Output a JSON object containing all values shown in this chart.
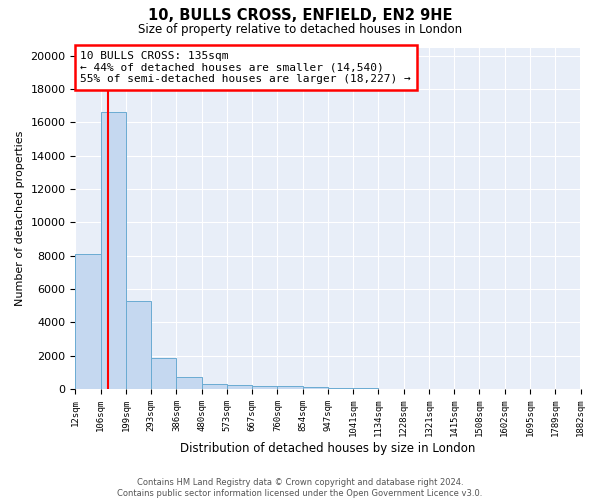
{
  "title": "10, BULLS CROSS, ENFIELD, EN2 9HE",
  "subtitle": "Size of property relative to detached houses in London",
  "xlabel": "Distribution of detached houses by size in London",
  "ylabel": "Number of detached properties",
  "bar_color": "#c5d8f0",
  "bar_edge_color": "#6aabd2",
  "background_color": "#e8eef8",
  "grid_color": "#ffffff",
  "bin_labels": [
    "12sqm",
    "106sqm",
    "199sqm",
    "293sqm",
    "386sqm",
    "480sqm",
    "573sqm",
    "667sqm",
    "760sqm",
    "854sqm",
    "947sqm",
    "1041sqm",
    "1134sqm",
    "1228sqm",
    "1321sqm",
    "1415sqm",
    "1508sqm",
    "1602sqm",
    "1695sqm",
    "1789sqm",
    "1882sqm"
  ],
  "bar_values": [
    8100,
    16600,
    5300,
    1850,
    700,
    320,
    230,
    210,
    180,
    130,
    50,
    40,
    30,
    20,
    15,
    10,
    8,
    5,
    3,
    2
  ],
  "ylim": [
    0,
    20500
  ],
  "yticks": [
    0,
    2000,
    4000,
    6000,
    8000,
    10000,
    12000,
    14000,
    16000,
    18000,
    20000
  ],
  "red_line_x": 1.31,
  "annotation_text": "10 BULLS CROSS: 135sqm\n← 44% of detached houses are smaller (14,540)\n55% of semi-detached houses are larger (18,227) →",
  "annotation_box_color": "white",
  "annotation_box_edge_color": "red",
  "footer_line1": "Contains HM Land Registry data © Crown copyright and database right 2024.",
  "footer_line2": "Contains public sector information licensed under the Open Government Licence v3.0."
}
